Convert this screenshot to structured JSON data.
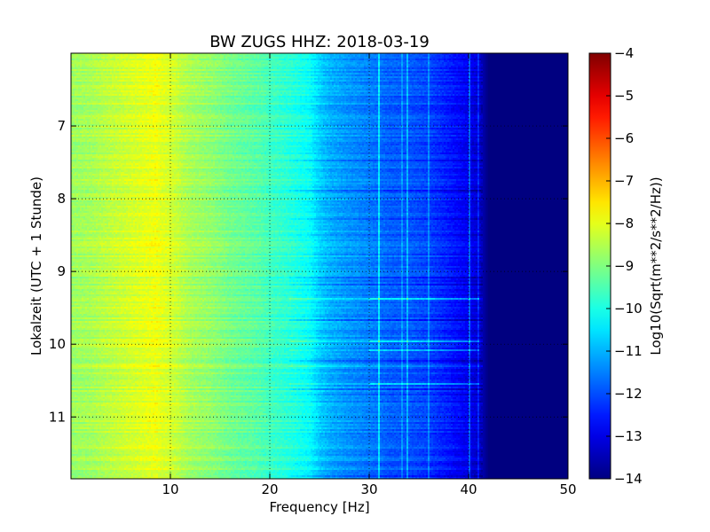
{
  "chart_data": {
    "type": "heatmap",
    "title": "BW ZUGS HHZ: 2018-03-19",
    "xlabel": "Frequency [Hz]",
    "ylabel": "Lokalzeit (UTC + 1 Stunde)",
    "xlim": [
      0,
      50
    ],
    "ylim": [
      6.0,
      11.85
    ],
    "y_inverted": true,
    "x_ticks": [
      10,
      20,
      30,
      40,
      50
    ],
    "x_tick_labels": [
      "10",
      "20",
      "30",
      "40",
      "50"
    ],
    "y_ticks": [
      7,
      8,
      9,
      10,
      11
    ],
    "y_tick_labels": [
      "7",
      "8",
      "9",
      "10",
      "11"
    ],
    "grid": true,
    "colorbar": {
      "label": "Log10(Sqrt(m**2/s**2/Hz))",
      "min": -14,
      "max": -4,
      "colormap": "jet",
      "ticks": [
        -4,
        -5,
        -6,
        -7,
        -8,
        -9,
        -10,
        -11,
        -12,
        -13,
        -14
      ],
      "tick_labels": [
        "−4",
        "−5",
        "−6",
        "−7",
        "−8",
        "−9",
        "−10",
        "−11",
        "−12",
        "−13",
        "−14"
      ]
    },
    "frequency_profile": {
      "frequency_hz": [
        0,
        2,
        4,
        6,
        7,
        8,
        8.5,
        9,
        10,
        12,
        14,
        16,
        18,
        19,
        20,
        22,
        24,
        25,
        26,
        28,
        30,
        32,
        34,
        36,
        38,
        40,
        41,
        42,
        45,
        50
      ],
      "log10_amplitude": [
        -8.7,
        -8.6,
        -8.35,
        -8.15,
        -8.05,
        -7.95,
        -7.85,
        -8.0,
        -8.15,
        -8.6,
        -8.8,
        -9.1,
        -9.3,
        -9.4,
        -9.6,
        -9.85,
        -10.2,
        -10.7,
        -11.0,
        -11.3,
        -11.5,
        -11.8,
        -11.9,
        -12.1,
        -12.5,
        -12.9,
        -13.2,
        -14.0,
        -14.0,
        -14.0
      ]
    }
  }
}
